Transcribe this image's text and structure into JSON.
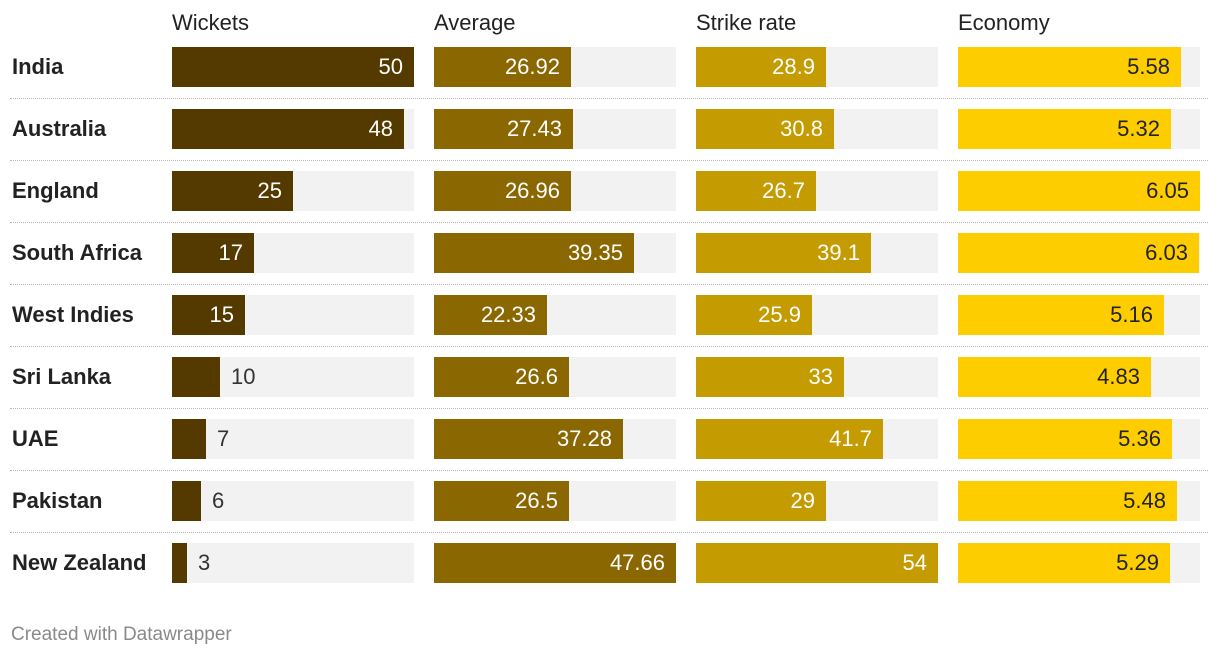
{
  "footer": "Created with Datawrapper",
  "colors": {
    "wickets": "#553a00",
    "average": "#8a6700",
    "strike_rate": "#c49b00",
    "economy": "#fecd00",
    "track": "#f2f2f2"
  },
  "chart_data": {
    "type": "bar",
    "title": "",
    "categories": [
      "India",
      "Australia",
      "England",
      "South Africa",
      "West Indies",
      "Sri Lanka",
      "UAE",
      "Pakistan",
      "New Zealand"
    ],
    "series": [
      {
        "name": "Wickets",
        "color": "#553a00",
        "max": 50,
        "labels": [
          "50",
          "48",
          "25",
          "17",
          "15",
          "10",
          "7",
          "6",
          "3"
        ],
        "values": [
          50,
          48,
          25,
          17,
          15,
          10,
          7,
          6,
          3
        ]
      },
      {
        "name": "Average",
        "color": "#8a6700",
        "max": 47.66,
        "labels": [
          "26.92",
          "27.43",
          "26.96",
          "39.35",
          "22.33",
          "26.6",
          "37.28",
          "26.5",
          "47.66"
        ],
        "values": [
          26.92,
          27.43,
          26.96,
          39.35,
          22.33,
          26.6,
          37.28,
          26.5,
          47.66
        ]
      },
      {
        "name": "Strike rate",
        "color": "#c49b00",
        "max": 54,
        "labels": [
          "28.9",
          "30.8",
          "26.7",
          "39.1",
          "25.9",
          "33",
          "41.7",
          "29",
          "54"
        ],
        "values": [
          28.9,
          30.8,
          26.7,
          39.1,
          25.9,
          33,
          41.7,
          29,
          54
        ]
      },
      {
        "name": "Economy",
        "color": "#fecd00",
        "max": 6.05,
        "labels": [
          "5.58",
          "5.32",
          "6.05",
          "6.03",
          "5.16",
          "4.83",
          "5.36",
          "5.48",
          "5.29"
        ],
        "values": [
          5.58,
          5.32,
          6.05,
          6.03,
          5.16,
          4.83,
          5.36,
          5.48,
          5.29
        ]
      }
    ]
  }
}
